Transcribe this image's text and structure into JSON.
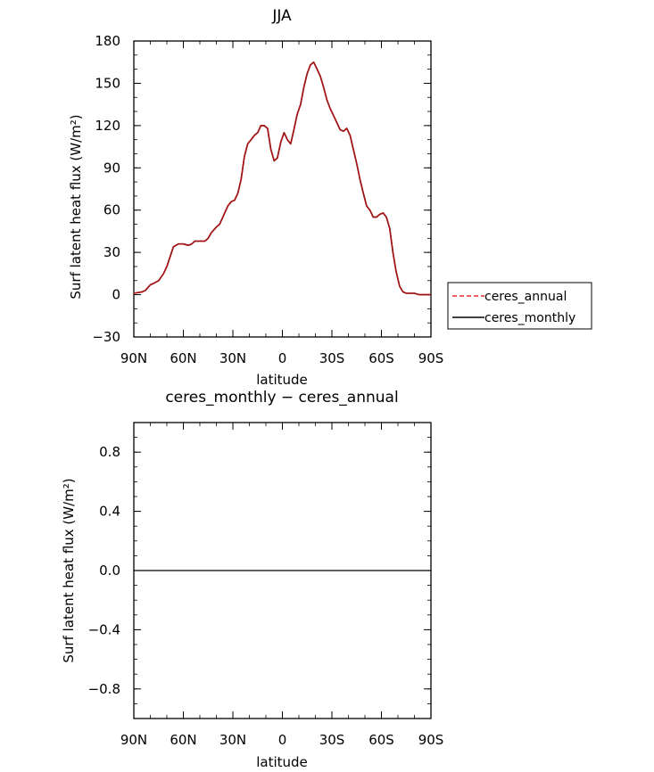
{
  "chart_data": [
    {
      "type": "line",
      "title": "JJA",
      "xlabel": "latitude",
      "ylabel": "Surf latent heat flux (W/m²)",
      "x_ticks": [
        "90N",
        "60N",
        "30N",
        "0",
        "30S",
        "60S",
        "90S"
      ],
      "y_ticks": [
        "−30",
        "0",
        "30",
        "60",
        "90",
        "120",
        "150",
        "180"
      ],
      "xlim": [
        90,
        -90
      ],
      "ylim": [
        -30,
        180
      ],
      "x": [
        90,
        85,
        83,
        80,
        78,
        75,
        72,
        70,
        68,
        66,
        63,
        60,
        57,
        55,
        53,
        50,
        47,
        45,
        43,
        40,
        38,
        35,
        33,
        31,
        29,
        27,
        25,
        23,
        21,
        19,
        17,
        15,
        13,
        11,
        9,
        7,
        5,
        3,
        1,
        -1,
        -3,
        -5,
        -7,
        -9,
        -11,
        -13,
        -15,
        -17,
        -19,
        -21,
        -23,
        -25,
        -27,
        -29,
        -31,
        -33,
        -35,
        -37,
        -39,
        -41,
        -43,
        -45,
        -47,
        -49,
        -51,
        -53,
        -55,
        -57,
        -59,
        -61,
        -63,
        -65,
        -67,
        -69,
        -71,
        -73,
        -75,
        -78,
        -80,
        -83,
        -85,
        -88,
        -90
      ],
      "series": [
        {
          "name": "ceres_annual",
          "color": "#e8292e",
          "dash": true,
          "values": [
            1,
            2,
            3,
            7,
            8,
            10,
            15,
            20,
            27,
            34,
            36,
            36,
            35,
            36,
            38,
            38,
            38,
            40,
            44,
            48,
            50,
            58,
            63,
            66,
            67,
            72,
            82,
            98,
            107,
            110,
            113,
            115,
            120,
            120,
            118,
            103,
            95,
            97,
            108,
            115,
            110,
            107,
            117,
            128,
            135,
            147,
            157,
            163,
            165,
            160,
            155,
            147,
            138,
            132,
            127,
            122,
            117,
            116,
            118,
            113,
            103,
            93,
            82,
            72,
            63,
            60,
            55,
            55,
            57,
            58,
            55,
            47,
            30,
            16,
            6,
            2,
            1,
            1,
            1,
            0,
            0,
            0,
            0
          ]
        },
        {
          "name": "ceres_monthly",
          "color": "#000000",
          "dash": false,
          "values": [
            1,
            2,
            3,
            7,
            8,
            10,
            15,
            20,
            27,
            34,
            36,
            36,
            35,
            36,
            38,
            38,
            38,
            40,
            44,
            48,
            50,
            58,
            63,
            66,
            67,
            72,
            82,
            98,
            107,
            110,
            113,
            115,
            120,
            120,
            118,
            103,
            95,
            97,
            108,
            115,
            110,
            107,
            117,
            128,
            135,
            147,
            157,
            163,
            165,
            160,
            155,
            147,
            138,
            132,
            127,
            122,
            117,
            116,
            118,
            113,
            103,
            93,
            82,
            72,
            63,
            60,
            55,
            55,
            57,
            58,
            55,
            47,
            30,
            16,
            6,
            2,
            1,
            1,
            1,
            0,
            0,
            0,
            0
          ]
        }
      ],
      "line_color_drawn": "#a01416",
      "legend": "right",
      "legend_entries": [
        "ceres_annual",
        "ceres_monthly"
      ],
      "grid": false
    },
    {
      "type": "line",
      "title": "ceres_monthly − ceres_annual",
      "xlabel": "latitude",
      "ylabel": "Surf latent heat flux (W/m²)",
      "x_ticks": [
        "90N",
        "60N",
        "30N",
        "0",
        "30S",
        "60S",
        "90S"
      ],
      "y_ticks": [
        "−0.8",
        "−0.4",
        "0.0",
        "0.4",
        "0.8"
      ],
      "xlim": [
        90,
        -90
      ],
      "ylim": [
        -1,
        1
      ],
      "x": [
        90,
        -90
      ],
      "series": [
        {
          "color": "#000000",
          "values": [
            0,
            0
          ]
        }
      ],
      "grid": false
    }
  ]
}
